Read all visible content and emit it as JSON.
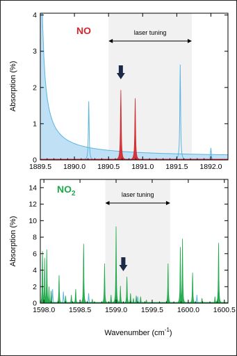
{
  "chart_data": [
    {
      "type": "line",
      "molecule_label": "NO",
      "molecule_color": "#d2282e",
      "ylabel": "Absorption (%)",
      "xlim": [
        1889.5,
        1892.25
      ],
      "ylim": [
        0,
        4.05
      ],
      "x_ticks": [
        1889.5,
        1890.0,
        1890.5,
        1891.0,
        1891.5,
        1892.0
      ],
      "x_tick_labels": [
        "1889.5",
        "1890.0",
        "1890.5",
        "1891.0",
        "1891.5",
        "1892.0"
      ],
      "y_ticks": [
        0,
        1,
        2,
        3,
        4
      ],
      "y_tick_labels": [
        "0",
        "1",
        "2",
        "3",
        "4"
      ],
      "band": {
        "label": "laser tuning",
        "x_range": [
          1890.5,
          1891.72
        ]
      },
      "arrow_x": 1890.68,
      "background_color": "#bfe0f5",
      "background_line_color": "#5ab4e0",
      "background_curve": {
        "x0": 1889.5,
        "y0": 4.05,
        "x_end": 1892.25,
        "y_end": 0.07
      },
      "series": [
        {
          "role": "simulated-wide",
          "color": "#5ab4e0",
          "peaks": [
            {
              "x": 1890.21,
              "y": 1.62
            },
            {
              "x": 1891.55,
              "y": 2.63
            },
            {
              "x": 1892.0,
              "y": 0.33
            }
          ]
        },
        {
          "role": "measured",
          "color": "#d2282e",
          "peaks": [
            {
              "x": 1890.68,
              "y": 1.93
            },
            {
              "x": 1890.89,
              "y": 1.7
            }
          ]
        }
      ]
    },
    {
      "type": "line",
      "molecule_label": "NO",
      "molecule_sub": "2",
      "molecule_color": "#1fa84a",
      "ylabel": "Absorption (%)",
      "xlabel_main": "Wavenumber (cm",
      "xlabel_sup": "-1",
      "xlabel_end": ")",
      "xlim": [
        1597.95,
        1600.55
      ],
      "ylim": [
        0,
        15
      ],
      "x_ticks": [
        1598.0,
        1598.5,
        1599.0,
        1599.5,
        1600.0,
        1600.5
      ],
      "x_tick_labels": [
        "1598.0",
        "1598.5",
        "1599.0",
        "1599.5",
        "1600.0",
        "1600.5"
      ],
      "y_ticks": [
        0,
        2,
        4,
        6,
        8,
        10,
        12,
        14
      ],
      "y_tick_labels": [
        "0",
        "2",
        "4",
        "6",
        "8",
        "10",
        "12",
        "14"
      ],
      "band": {
        "label": "laser tuning",
        "x_range": [
          1598.85,
          1599.75
        ]
      },
      "arrow_x": 1599.1,
      "series": [
        {
          "role": "simulated-wide",
          "color": "#5ab4e0",
          "peaks": [
            {
              "x": 1598.12,
              "y": 1.7
            },
            {
              "x": 1598.27,
              "y": 1.4
            },
            {
              "x": 1598.62,
              "y": 1.2
            },
            {
              "x": 1599.0,
              "y": 1.9
            },
            {
              "x": 1599.3,
              "y": 0.8
            },
            {
              "x": 1599.72,
              "y": 0.9
            },
            {
              "x": 1600.12,
              "y": 1.0
            },
            {
              "x": 1600.42,
              "y": 1.4
            }
          ]
        },
        {
          "role": "measured",
          "color": "#1fa84a",
          "peaks": [
            {
              "x": 1597.98,
              "y": 6.3
            },
            {
              "x": 1598.01,
              "y": 5.5
            },
            {
              "x": 1598.04,
              "y": 6.5
            },
            {
              "x": 1598.07,
              "y": 2.0
            },
            {
              "x": 1598.1,
              "y": 1.5
            },
            {
              "x": 1598.21,
              "y": 3.4
            },
            {
              "x": 1598.3,
              "y": 0.9
            },
            {
              "x": 1598.38,
              "y": 1.0
            },
            {
              "x": 1598.44,
              "y": 1.7
            },
            {
              "x": 1598.55,
              "y": 7.2
            },
            {
              "x": 1598.67,
              "y": 0.5
            },
            {
              "x": 1598.84,
              "y": 4.8
            },
            {
              "x": 1598.93,
              "y": 1.0
            },
            {
              "x": 1599.0,
              "y": 9.3
            },
            {
              "x": 1599.06,
              "y": 2.1
            },
            {
              "x": 1599.15,
              "y": 3.2
            },
            {
              "x": 1599.2,
              "y": 1.2
            },
            {
              "x": 1599.24,
              "y": 0.6
            },
            {
              "x": 1599.28,
              "y": 0.9
            },
            {
              "x": 1599.34,
              "y": 0.8
            },
            {
              "x": 1599.42,
              "y": 0.4
            },
            {
              "x": 1599.72,
              "y": 4.8
            },
            {
              "x": 1599.89,
              "y": 6.8
            },
            {
              "x": 1599.92,
              "y": 7.8
            },
            {
              "x": 1600.06,
              "y": 3.7
            },
            {
              "x": 1600.19,
              "y": 0.6
            },
            {
              "x": 1600.37,
              "y": 0.8
            },
            {
              "x": 1600.42,
              "y": 7.3
            }
          ]
        }
      ]
    }
  ]
}
